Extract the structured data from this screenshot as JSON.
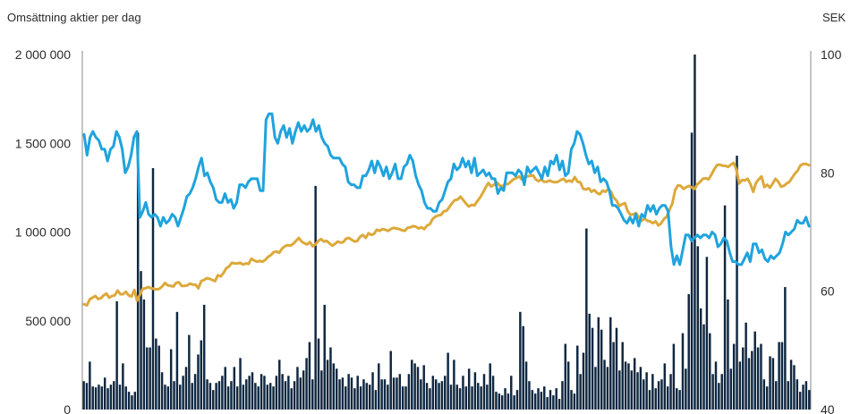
{
  "header": {
    "left_title": "Omsättning aktier per dag",
    "right_unit": "SEK"
  },
  "colors": {
    "bars": "#0f2740",
    "price_line": "#1fa3dd",
    "index_line": "#dca93a",
    "axis": "#8a8a8a"
  },
  "chart_data": {
    "type": "bar",
    "title": "",
    "xlabel": "",
    "ylabel": "Omsättning aktier per dag",
    "y2label": "SEK",
    "ylim": [
      0,
      2000000
    ],
    "y2lim": [
      40,
      100
    ],
    "yticks": [
      "0",
      "500 000",
      "1 000 000",
      "1 500 000",
      "2 000 000"
    ],
    "y2ticks": [
      "40",
      "60",
      "80",
      "100"
    ],
    "yticks_values": [
      0,
      500000,
      1000000,
      1500000,
      2000000
    ],
    "y2ticks_values": [
      40,
      60,
      80,
      100
    ],
    "grid": false,
    "series": [
      {
        "name": "",
        "type": "bar",
        "axis": "left",
        "values": [
          160000,
          150000,
          270000,
          130000,
          125000,
          140000,
          130000,
          180000,
          120000,
          140000,
          160000,
          610000,
          140000,
          260000,
          130000,
          100000,
          80000,
          100000,
          1560000,
          780000,
          620000,
          350000,
          350000,
          1360000,
          400000,
          360000,
          210000,
          140000,
          130000,
          340000,
          160000,
          550000,
          140000,
          190000,
          240000,
          420000,
          150000,
          200000,
          310000,
          390000,
          590000,
          170000,
          150000,
          110000,
          150000,
          160000,
          190000,
          240000,
          130000,
          160000,
          240000,
          130000,
          290000,
          140000,
          170000,
          190000,
          210000,
          150000,
          130000,
          200000,
          190000,
          140000,
          150000,
          130000,
          190000,
          280000,
          200000,
          160000,
          190000,
          120000,
          160000,
          240000,
          180000,
          220000,
          290000,
          380000,
          170000,
          1260000,
          400000,
          220000,
          590000,
          280000,
          350000,
          260000,
          230000,
          170000,
          180000,
          130000,
          200000,
          180000,
          120000,
          190000,
          130000,
          170000,
          150000,
          140000,
          210000,
          110000,
          260000,
          170000,
          170000,
          140000,
          330000,
          180000,
          180000,
          200000,
          130000,
          130000,
          200000,
          280000,
          260000,
          240000,
          170000,
          250000,
          150000,
          120000,
          190000,
          170000,
          150000,
          160000,
          190000,
          320000,
          140000,
          280000,
          140000,
          120000,
          190000,
          130000,
          230000,
          130000,
          210000,
          150000,
          130000,
          200000,
          140000,
          260000,
          190000,
          100000,
          90000,
          80000,
          120000,
          90000,
          190000,
          80000,
          110000,
          550000,
          470000,
          270000,
          160000,
          110000,
          90000,
          120000,
          100000,
          130000,
          70000,
          110000,
          80000,
          120000,
          60000,
          160000,
          370000,
          270000,
          110000,
          90000,
          360000,
          200000,
          320000,
          1020000,
          540000,
          460000,
          240000,
          520000,
          450000,
          280000,
          240000,
          520000,
          380000,
          460000,
          220000,
          380000,
          270000,
          260000,
          220000,
          290000,
          210000,
          240000,
          170000,
          210000,
          110000,
          200000,
          120000,
          160000,
          170000,
          260000,
          130000,
          200000,
          370000,
          120000,
          110000,
          430000,
          230000,
          650000,
          1560000,
          2000000,
          920000,
          570000,
          480000,
          860000,
          430000,
          200000,
          270000,
          150000,
          200000,
          1150000,
          620000,
          230000,
          370000,
          1430000,
          270000,
          350000,
          490000,
          290000,
          330000,
          440000,
          350000,
          370000,
          170000,
          130000,
          300000,
          290000,
          160000,
          380000,
          380000,
          690000,
          160000,
          280000,
          250000,
          170000,
          100000,
          140000,
          160000,
          110000
        ]
      },
      {
        "name": "",
        "type": "line",
        "axis": "right",
        "values": [
          86.5,
          83,
          86,
          87,
          86,
          85.5,
          84,
          84,
          82,
          84,
          84.5,
          87,
          86,
          84,
          80,
          81,
          83,
          86,
          87,
          72.5,
          73.5,
          75,
          73,
          72.5,
          73,
          72.5,
          71,
          72.5,
          71.5,
          72,
          73,
          72.5,
          71,
          72.5,
          74,
          76,
          76.5,
          77.5,
          79,
          81,
          82.5,
          79.5,
          80,
          78.5,
          77.5,
          75.5,
          75,
          75,
          76.5,
          75,
          75.5,
          74,
          75,
          78,
          78,
          77.5,
          78.5,
          79,
          79,
          79,
          77,
          77,
          89,
          90,
          90,
          86,
          85,
          87,
          88,
          86,
          87.5,
          85,
          87,
          88.5,
          87,
          88,
          87,
          87.5,
          89,
          87,
          88,
          86,
          85,
          84.5,
          83,
          82.5,
          82.5,
          82.5,
          81.5,
          81,
          78.5,
          78,
          78,
          77.5,
          77.5,
          79.5,
          79.5,
          80.5,
          82,
          80,
          82,
          81,
          79.5,
          81,
          79,
          80,
          81.5,
          79,
          79,
          81,
          81.5,
          83,
          82,
          79.5,
          78,
          77,
          75,
          74,
          74,
          73.5,
          73.5,
          75,
          75.5,
          77,
          78.5,
          79,
          81.5,
          80.5,
          81,
          82.5,
          81,
          82,
          80,
          82.5,
          79.5,
          80,
          80.5,
          79.5,
          80,
          79,
          79,
          76.5,
          77.5,
          77,
          80,
          80,
          80,
          79.5,
          80.5,
          80,
          78,
          81,
          80,
          80.5,
          81,
          80,
          79,
          81,
          79.5,
          82,
          81.5,
          83,
          80.5,
          82,
          79.5,
          80,
          84,
          85,
          87,
          86.5,
          85,
          83,
          81.5,
          82,
          80,
          81,
          78.5,
          79,
          78.5,
          77,
          74.5,
          74.5,
          74,
          73,
          72,
          71.5,
          72.5,
          71.5,
          73,
          71,
          73,
          72.5,
          74.5,
          73.5,
          74.5,
          73,
          74,
          74.5,
          74.5,
          73.5,
          67.5,
          64.5,
          66,
          64.5,
          67,
          69.5,
          69.5,
          68.5,
          69,
          69.5,
          69,
          69.5,
          69.5,
          69,
          70,
          69.5,
          67.5,
          68,
          69,
          68.5,
          66.5,
          65,
          65,
          64.5,
          64.5,
          65.5,
          66.5,
          65,
          68,
          68,
          66.5,
          67,
          65.5,
          65,
          66,
          65.5,
          66,
          66.5,
          68,
          70,
          69.5,
          70,
          70.5,
          72,
          71.5,
          71.5,
          72.5,
          71
        ]
      },
      {
        "name": "",
        "type": "line",
        "axis": "right",
        "values": [
          57.8,
          57.6,
          58.6,
          58.9,
          59.2,
          58.7,
          58.8,
          59.3,
          59.6,
          58.9,
          59.2,
          59.3,
          60.1,
          59.5,
          59.5,
          59.9,
          59.3,
          59.1,
          60.2,
          58.4,
          59.4,
          60.4,
          60.5,
          60.7,
          60.5,
          60.4,
          60.3,
          60.4,
          60.8,
          61.4,
          61.0,
          60.9,
          60.8,
          61.4,
          61.5,
          60.9,
          60.9,
          61.0,
          61.3,
          61.1,
          61.1,
          60.5,
          61.7,
          61.9,
          62.2,
          62.1,
          61.9,
          61.7,
          62.7,
          62.5,
          63.1,
          63.9,
          64.2,
          64.8,
          64.7,
          64.7,
          64.8,
          64.5,
          64.7,
          64.6,
          65.5,
          65.2,
          65.0,
          65.1,
          65.0,
          65.3,
          65.8,
          66.1,
          66.6,
          66.7,
          66.5,
          67.2,
          67.6,
          67.8,
          67.7,
          68.0,
          68.5,
          69.0,
          68.4,
          68.1,
          67.9,
          68.3,
          67.6,
          67.9,
          68.5,
          68.8,
          68.4,
          68.5,
          68.1,
          67.7,
          68.0,
          68.4,
          68.2,
          68.3,
          68.9,
          69.0,
          68.7,
          68.4,
          68.5,
          69.2,
          69.5,
          69.0,
          69.8,
          69.5,
          69.7,
          70.4,
          70.2,
          70.5,
          70.4,
          70.2,
          70.5,
          70.7,
          70.6,
          70.5,
          70.3,
          70.2,
          70.7,
          70.8,
          71.0,
          70.9,
          70.6,
          70.8,
          70.5,
          71.1,
          71.3,
          72.2,
          72.6,
          72.8,
          72.9,
          73.5,
          73.6,
          74.2,
          74.9,
          75.4,
          75.5,
          76.0,
          75.4,
          74.8,
          74.3,
          74.6,
          74.5,
          75.2,
          75.8,
          76.6,
          77.5,
          78.3,
          77.7,
          78.0,
          78.4,
          77.9,
          77.7,
          78.1,
          78.1,
          78.5,
          78.9,
          79.1,
          79.4,
          78.9,
          79.4,
          79.4,
          79.5,
          79.6,
          78.9,
          78.6,
          78.9,
          78.5,
          78.5,
          78.7,
          78.5,
          78.4,
          78.5,
          78.8,
          79.0,
          78.5,
          78.7,
          78.5,
          79.3,
          78.5,
          78.4,
          77.3,
          77.2,
          77.4,
          76.8,
          77.1,
          76.6,
          76.4,
          77.0,
          76.8,
          77.3,
          76.8,
          75.8,
          75.3,
          74.4,
          74.7,
          74.9,
          73.5,
          72.9,
          73.0,
          73.2,
          72.5,
          71.9,
          72.3,
          71.9,
          71.8,
          71.5,
          71.8,
          71.1,
          71.5,
          72.2,
          72.6,
          73.8,
          74.8,
          77.1,
          77.9,
          77.8,
          77.3,
          77.6,
          77.8,
          77.5,
          77.3,
          78.1,
          78.5,
          79.0,
          79.1,
          78.9,
          79.7,
          80.6,
          81.3,
          81.4,
          81.2,
          81.2,
          81.0,
          81.4,
          81.7,
          80.5,
          78.2,
          78.8,
          78.7,
          79.0,
          78.1,
          76.8,
          78.3,
          78.9,
          79.4,
          77.6,
          78.0,
          77.5,
          78.2,
          79.0,
          78.5,
          77.7,
          77.8,
          78.2,
          78.5,
          79.2,
          79.9,
          80.4,
          81.3,
          81.5,
          81.5,
          81.3
        ]
      }
    ]
  }
}
